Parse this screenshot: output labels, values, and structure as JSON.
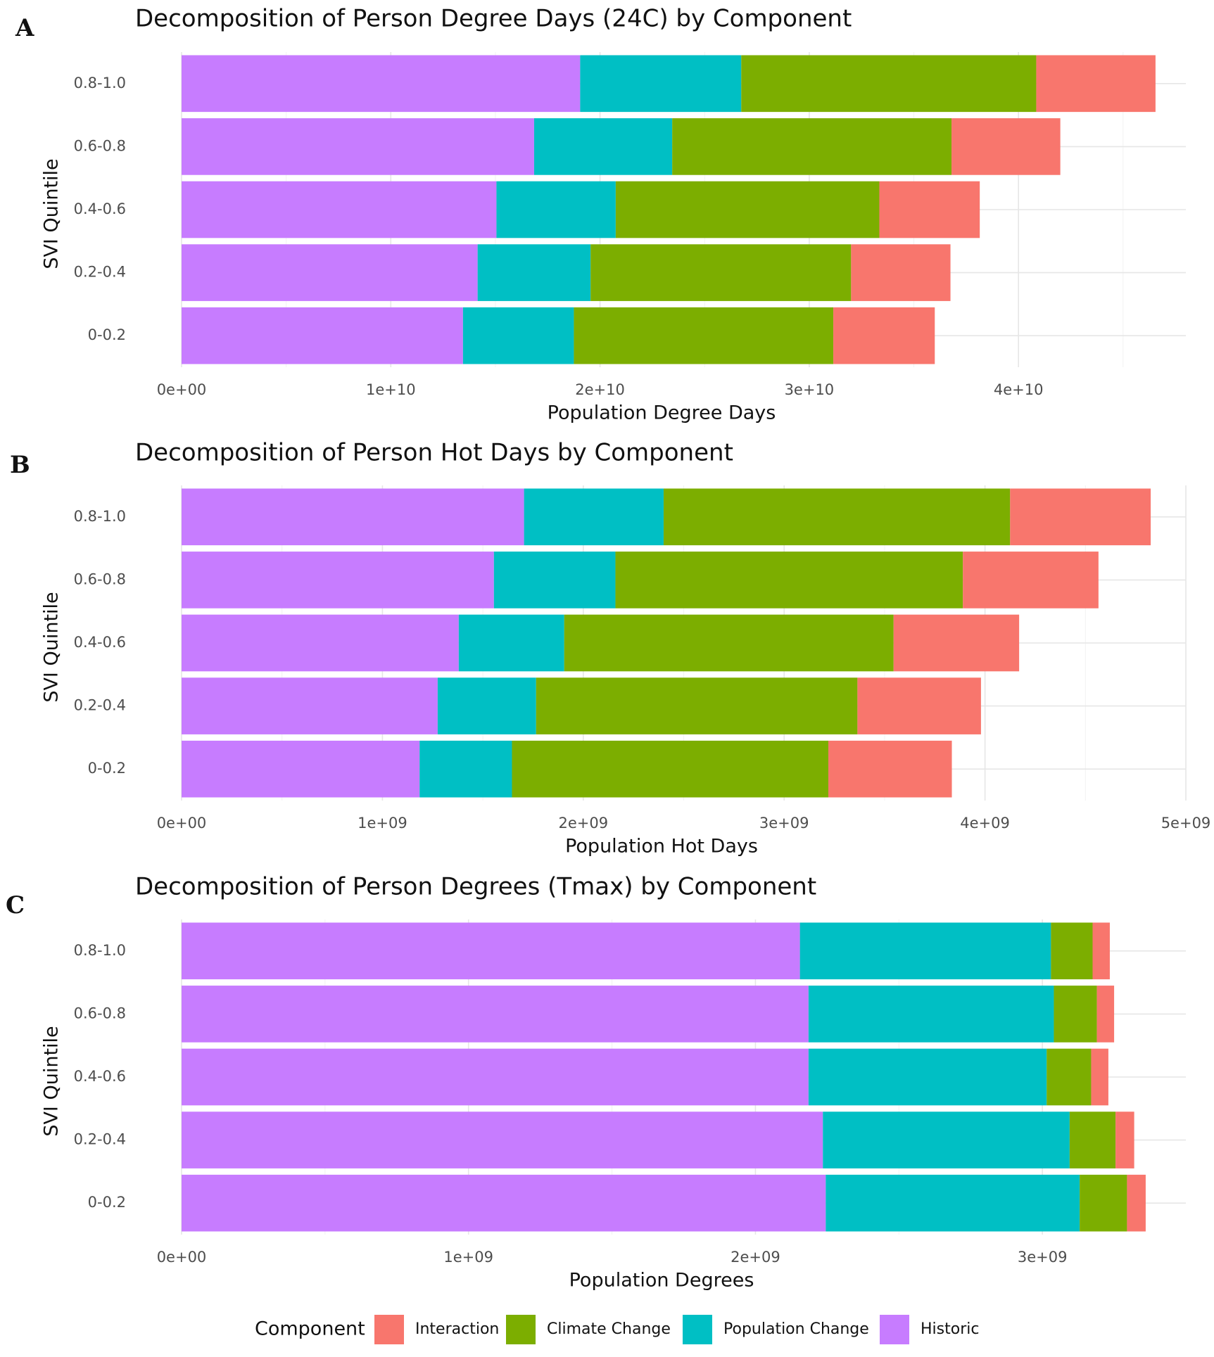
{
  "chart_data": [
    {
      "type": "bar",
      "orientation": "horizontal",
      "stacked": true,
      "panel_label": "A",
      "title": "Decomposition of Person Degree Days (24C) by Component",
      "xlabel": "Population Degree Days",
      "ylabel": "SVI Quintile",
      "categories": [
        "0-0.2",
        "0.2-0.4",
        "0.4-0.6",
        "0.6-0.8",
        "0.8-1.0"
      ],
      "xlim": [
        0,
        48000000000.0
      ],
      "xticks": [
        0,
        10000000000.0,
        20000000000.0,
        30000000000.0,
        40000000000.0
      ],
      "xtick_labels": [
        "0e+00",
        "1e+10",
        "2e+10",
        "3e+10",
        "4e+10"
      ],
      "grid": true,
      "series": [
        {
          "name": "Historic",
          "values": [
            13450000000.0,
            14150000000.0,
            15050000000.0,
            16850000000.0,
            19050000000.0
          ]
        },
        {
          "name": "Population Change",
          "values": [
            5300000000.0,
            5400000000.0,
            5700000000.0,
            6600000000.0,
            7700000000.0
          ]
        },
        {
          "name": "Climate Change",
          "values": [
            12400000000.0,
            12450000000.0,
            12600000000.0,
            13350000000.0,
            14100000000.0
          ]
        },
        {
          "name": "Interaction",
          "values": [
            4850000000.0,
            4750000000.0,
            4800000000.0,
            5200000000.0,
            5700000000.0
          ]
        }
      ]
    },
    {
      "type": "bar",
      "orientation": "horizontal",
      "stacked": true,
      "panel_label": "B",
      "title": "Decomposition of Person Hot Days by Component",
      "xlabel": "Population Hot Days",
      "ylabel": "SVI Quintile",
      "categories": [
        "0-0.2",
        "0.2-0.4",
        "0.4-0.6",
        "0.6-0.8",
        "0.8-1.0"
      ],
      "xlim": [
        0,
        5000000000.0
      ],
      "xticks": [
        0,
        1000000000.0,
        2000000000.0,
        3000000000.0,
        4000000000.0,
        5000000000.0
      ],
      "xtick_labels": [
        "0e+00",
        "1e+09",
        "2e+09",
        "3e+09",
        "4e+09",
        "5e+09"
      ],
      "grid": true,
      "series": [
        {
          "name": "Historic",
          "values": [
            1185000000.0,
            1275000000.0,
            1380000000.0,
            1555000000.0,
            1705000000.0
          ]
        },
        {
          "name": "Population Change",
          "values": [
            460000000.0,
            490000000.0,
            525000000.0,
            605000000.0,
            695000000.0
          ]
        },
        {
          "name": "Climate Change",
          "values": [
            1575000000.0,
            1600000000.0,
            1640000000.0,
            1730000000.0,
            1725000000.0
          ]
        },
        {
          "name": "Interaction",
          "values": [
            615000000.0,
            615000000.0,
            625000000.0,
            675000000.0,
            700000000.0
          ]
        }
      ]
    },
    {
      "type": "bar",
      "orientation": "horizontal",
      "stacked": true,
      "panel_label": "C",
      "title": "Decomposition of Person Degrees (Tmax) by Component",
      "xlabel": "Population Degrees",
      "ylabel": "SVI Quintile",
      "categories": [
        "0-0.2",
        "0.2-0.4",
        "0.4-0.6",
        "0.6-0.8",
        "0.8-1.0"
      ],
      "xlim": [
        0,
        3500000000.0
      ],
      "xticks": [
        0,
        1000000000.0,
        2000000000.0,
        3000000000.0
      ],
      "xtick_labels": [
        "0e+00",
        "1e+09",
        "2e+09",
        "3e+09"
      ],
      "grid": true,
      "series": [
        {
          "name": "Historic",
          "values": [
            2245000000.0,
            2235000000.0,
            2185000000.0,
            2185000000.0,
            2155000000.0
          ]
        },
        {
          "name": "Population Change",
          "values": [
            885000000.0,
            860000000.0,
            830000000.0,
            855000000.0,
            875000000.0
          ]
        },
        {
          "name": "Climate Change",
          "values": [
            165000000.0,
            160000000.0,
            155000000.0,
            150000000.0,
            145000000.0
          ]
        },
        {
          "name": "Interaction",
          "values": [
            65000000.0,
            65000000.0,
            60000000.0,
            60000000.0,
            60000000.0
          ]
        }
      ]
    }
  ],
  "legend": {
    "title": "Component",
    "position": "bottom",
    "items": [
      {
        "name": "Interaction",
        "color": "#F8766D"
      },
      {
        "name": "Climate Change",
        "color": "#7CAE00"
      },
      {
        "name": "Population Change",
        "color": "#00BFC4"
      },
      {
        "name": "Historic",
        "color": "#C77CFF"
      }
    ]
  },
  "colors": {
    "Historic": "#C77CFF",
    "Population Change": "#00BFC4",
    "Climate Change": "#7CAE00",
    "Interaction": "#F8766D"
  }
}
